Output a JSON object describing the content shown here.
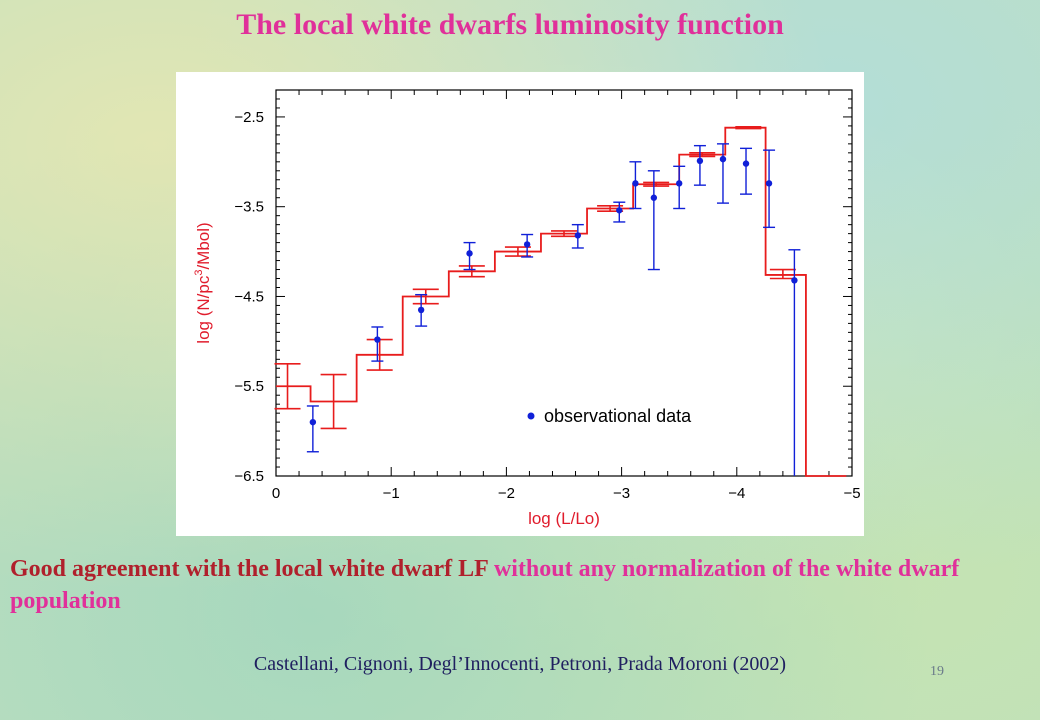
{
  "slide": {
    "title": "The local white dwarfs luminosity function",
    "caption_part1": "Good agreement with the local white dwarf LF ",
    "caption_part2": "without any normalization of  the white dwarf population",
    "citation": "Castellani, Cignoni, Degl’Innocenti, Petroni, Prada Moroni (2002)",
    "page_number": "19",
    "colors": {
      "title": "#e0309a",
      "caption_red": "#b0202c",
      "caption_magenta": "#e0309a",
      "citation": "#202060",
      "page_number": "#6a7a8a",
      "model": "#e81c1c",
      "observed": "#1020d8",
      "axis_label": "#e01c2c"
    }
  },
  "chart_data": {
    "type": "line",
    "title": "",
    "xlabel": "log (L/Lo)",
    "ylabel": "log (N/pc³/Mbol)",
    "ylabel_parts": [
      "log (N/pc",
      "3",
      "/Mbol)"
    ],
    "xlim": [
      0,
      -5
    ],
    "ylim": [
      -6.5,
      -2.2
    ],
    "xticks": [
      0,
      -1,
      -2,
      -3,
      -4,
      -5
    ],
    "xtick_labels": [
      "0",
      "−1",
      "−2",
      "−3",
      "−4",
      "−5"
    ],
    "yticks": [
      -2.5,
      -3.5,
      -4.5,
      -5.5,
      -6.5
    ],
    "ytick_labels": [
      "−2.5",
      "−3.5",
      "−4.5",
      "−5.5",
      "−6.5"
    ],
    "legend": {
      "label": "observational data",
      "position": "bottom-right"
    },
    "model": {
      "steps": [
        {
          "x0": 0.0,
          "x1": -0.3,
          "y": -5.5
        },
        {
          "x0": -0.3,
          "x1": -0.7,
          "y": -5.67
        },
        {
          "x0": -0.7,
          "x1": -1.1,
          "y": -5.15
        },
        {
          "x0": -1.1,
          "x1": -1.5,
          "y": -4.5
        },
        {
          "x0": -1.5,
          "x1": -1.9,
          "y": -4.22
        },
        {
          "x0": -1.9,
          "x1": -2.3,
          "y": -4.0
        },
        {
          "x0": -2.3,
          "x1": -2.7,
          "y": -3.8
        },
        {
          "x0": -2.7,
          "x1": -3.1,
          "y": -3.52
        },
        {
          "x0": -3.1,
          "x1": -3.5,
          "y": -3.25
        },
        {
          "x0": -3.5,
          "x1": -3.9,
          "y": -2.92
        },
        {
          "x0": -3.9,
          "x1": -4.25,
          "y": -2.62
        },
        {
          "x0": -4.25,
          "x1": -4.6,
          "y": -4.26
        },
        {
          "x0": -4.6,
          "x1": -4.95,
          "y": -6.5
        }
      ],
      "errors": [
        {
          "x": -0.1,
          "y": -5.5,
          "lo": -5.75,
          "hi": -5.25
        },
        {
          "x": -0.5,
          "y": -5.67,
          "lo": -5.97,
          "hi": -5.37
        },
        {
          "x": -0.9,
          "y": -5.15,
          "lo": -5.32,
          "hi": -4.98
        },
        {
          "x": -1.3,
          "y": -4.5,
          "lo": -4.58,
          "hi": -4.42
        },
        {
          "x": -1.7,
          "y": -4.22,
          "lo": -4.28,
          "hi": -4.16
        },
        {
          "x": -2.1,
          "y": -4.0,
          "lo": -4.05,
          "hi": -3.95
        },
        {
          "x": -2.5,
          "y": -3.8,
          "lo": -3.83,
          "hi": -3.77
        },
        {
          "x": -2.9,
          "y": -3.52,
          "lo": -3.55,
          "hi": -3.49
        },
        {
          "x": -3.3,
          "y": -3.25,
          "lo": -3.27,
          "hi": -3.23
        },
        {
          "x": -3.7,
          "y": -2.92,
          "lo": -2.94,
          "hi": -2.9
        },
        {
          "x": -4.1,
          "y": -2.62,
          "lo": -2.63,
          "hi": -2.61
        },
        {
          "x": -4.4,
          "y": -4.26,
          "lo": -4.3,
          "hi": -4.2
        }
      ]
    },
    "observed": {
      "name": "observational data",
      "points": [
        {
          "x": -0.32,
          "y": -5.9,
          "lo": -6.23,
          "hi": -5.72
        },
        {
          "x": -0.88,
          "y": -4.98,
          "lo": -5.22,
          "hi": -4.84
        },
        {
          "x": -1.26,
          "y": -4.65,
          "lo": -4.83,
          "hi": -4.48
        },
        {
          "x": -1.68,
          "y": -4.02,
          "lo": -4.2,
          "hi": -3.9
        },
        {
          "x": -2.18,
          "y": -3.92,
          "lo": -4.06,
          "hi": -3.81
        },
        {
          "x": -2.62,
          "y": -3.82,
          "lo": -3.96,
          "hi": -3.7
        },
        {
          "x": -2.98,
          "y": -3.54,
          "lo": -3.67,
          "hi": -3.45
        },
        {
          "x": -3.12,
          "y": -3.24,
          "lo": -3.52,
          "hi": -3.0
        },
        {
          "x": -3.28,
          "y": -3.4,
          "lo": -4.2,
          "hi": -3.1
        },
        {
          "x": -3.5,
          "y": -3.24,
          "lo": -3.52,
          "hi": -3.05
        },
        {
          "x": -3.68,
          "y": -2.99,
          "lo": -3.26,
          "hi": -2.82
        },
        {
          "x": -3.88,
          "y": -2.97,
          "lo": -3.46,
          "hi": -2.8
        },
        {
          "x": -4.08,
          "y": -3.02,
          "lo": -3.36,
          "hi": -2.85
        },
        {
          "x": -4.28,
          "y": -3.24,
          "lo": -3.73,
          "hi": -2.87
        },
        {
          "x": -4.5,
          "y": -4.32,
          "lo": -6.5,
          "hi": -3.98
        }
      ]
    }
  }
}
